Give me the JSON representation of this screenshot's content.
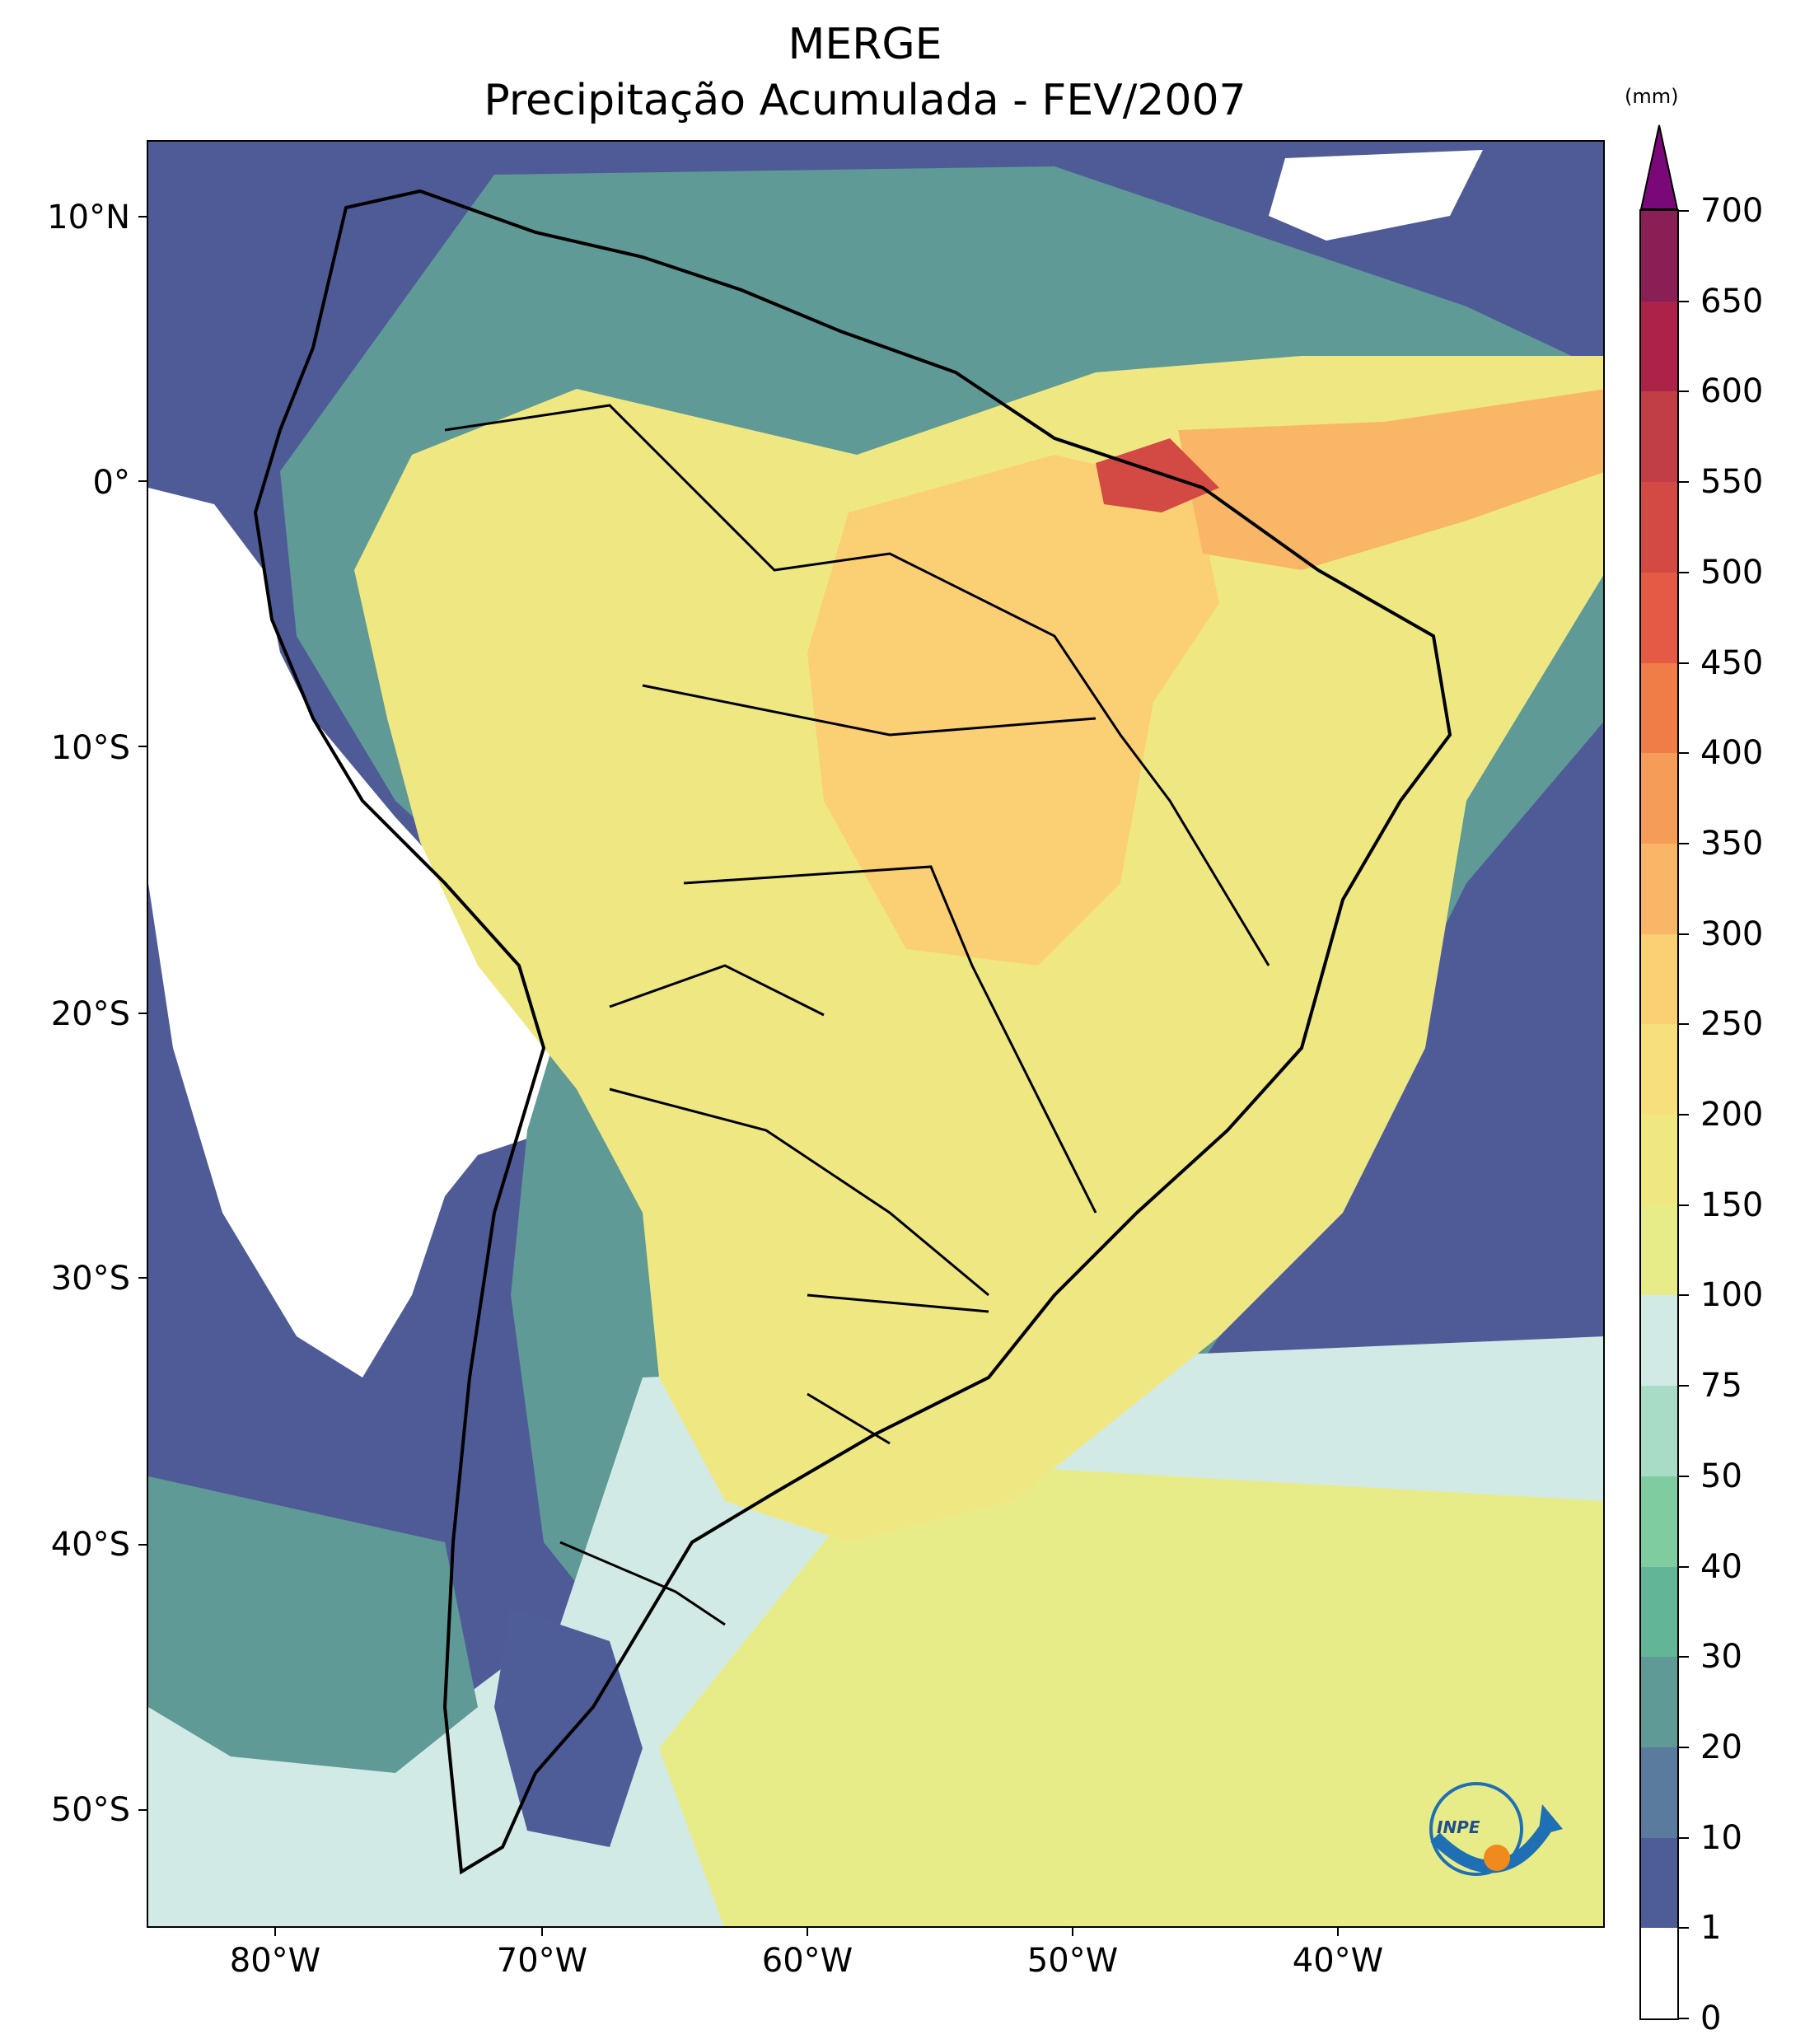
{
  "title": {
    "line1": "MERGE",
    "line2": "Precipitação Acumulada - FEV/2007"
  },
  "axes": {
    "lat_labels": [
      "10°N",
      "0°",
      "10°S",
      "20°S",
      "30°S",
      "40°S",
      "50°S"
    ],
    "lon_labels": [
      "80°W",
      "70°W",
      "60°W",
      "50°W",
      "40°W"
    ]
  },
  "colorbar": {
    "unit": "(mm)",
    "levels": [
      "0",
      "1",
      "10",
      "20",
      "30",
      "40",
      "50",
      "75",
      "100",
      "150",
      "200",
      "250",
      "300",
      "350",
      "400",
      "450",
      "500",
      "550",
      "600",
      "650",
      "700"
    ],
    "colors": [
      "#ffffff",
      "#4e5c98",
      "#5a7a9e",
      "#5f9a97",
      "#62b596",
      "#7ecca0",
      "#a8dcc6",
      "#d2eae6",
      "#e8ec88",
      "#efe882",
      "#f8df7e",
      "#fbcf74",
      "#f8b666",
      "#f59c58",
      "#f07c48",
      "#e45a44",
      "#d34a44",
      "#c23e47",
      "#ad2249",
      "#8a1f55"
    ],
    "extend_color": "#7a0878"
  },
  "logo": {
    "text": "INPE"
  }
}
